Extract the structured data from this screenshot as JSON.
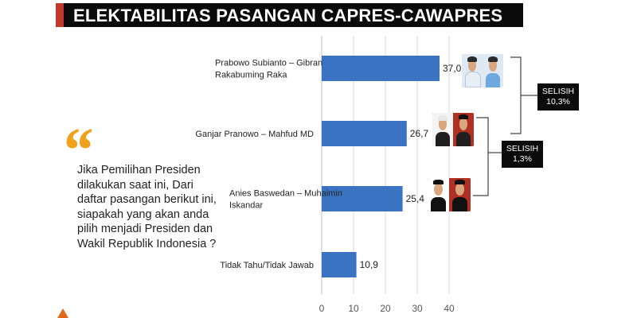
{
  "header": {
    "title": "ELEKTABILITAS PASANGAN CAPRES-CAWAPRES"
  },
  "question": {
    "quote_icon": "quote-mark-icon",
    "text": "Jika Pemilihan Presiden dilakukan saat ini, Dari daftar pasangan berikut ini, siapakah yang akan anda pilih menjadi Presiden dan Wakil Republik Indonesia ?"
  },
  "chart_data": {
    "type": "bar",
    "orientation": "horizontal",
    "categories": [
      [
        "Prabowo Subianto – Gibran",
        "Rakabuming Raka"
      ],
      [
        "Ganjar Pranowo – Mahfud MD"
      ],
      [
        "Anies Baswedan – Muhaimin",
        "Iskandar"
      ],
      [
        "Tidak Tahu/Tidak Jawab"
      ]
    ],
    "values": [
      37.0,
      26.7,
      25.4,
      10.9
    ],
    "value_labels": [
      "37,0",
      "26,7",
      "25,4",
      "10,9"
    ],
    "xlim": [
      0,
      40
    ],
    "x_ticks": [
      0,
      10,
      20,
      30,
      40
    ],
    "grid": true,
    "bar_color": "#3a73c2",
    "annotations": [
      {
        "label": [
          "SELISIH",
          "10,3%"
        ],
        "between": [
          0,
          1
        ]
      },
      {
        "label": [
          "SELISIH",
          "1,3%"
        ],
        "between": [
          1,
          2
        ]
      }
    ]
  },
  "colors": {
    "title_bg": "#0b0b0b",
    "title_accent": "#c0392b",
    "quote": "#f0a21c",
    "bar": "#3a73c2"
  }
}
